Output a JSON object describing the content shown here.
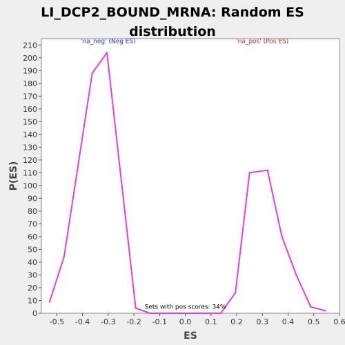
{
  "chart_data": {
    "type": "line",
    "title_lines": [
      "LI_DCP2_BOUND_MRNA: Random ES",
      "distribution"
    ],
    "xlabel": "ES",
    "ylabel": "P(ES)",
    "xlim": [
      -0.56,
      0.6
    ],
    "ylim": [
      0,
      215
    ],
    "x_ticks": [
      -0.5,
      -0.4,
      -0.3,
      -0.2,
      -0.1,
      0.0,
      0.1,
      0.2,
      0.3,
      0.4,
      0.5,
      0.6
    ],
    "x_tick_labels": [
      "-0.5",
      "-0.4",
      "-0.3",
      "-0.2",
      "-0.1",
      "0.0",
      "0.1",
      "0.2",
      "0.3",
      "0.4",
      "0.5",
      "0.6"
    ],
    "y_ticks": [
      0,
      10,
      20,
      30,
      40,
      50,
      60,
      70,
      80,
      90,
      100,
      110,
      120,
      130,
      140,
      150,
      160,
      170,
      180,
      190,
      200,
      210
    ],
    "y_tick_labels": [
      "0",
      "10",
      "20",
      "30",
      "40",
      "50",
      "60",
      "70",
      "80",
      "90",
      "100",
      "110",
      "120",
      "130",
      "140",
      "150",
      "160",
      "170",
      "180",
      "190",
      "200",
      "210"
    ],
    "series": [
      {
        "name": "Random ES",
        "color": "#e83ce8",
        "x": [
          -0.528,
          -0.472,
          -0.362,
          -0.305,
          -0.193,
          -0.137,
          0.138,
          0.195,
          0.25,
          0.32,
          0.376,
          0.432,
          0.488,
          0.545
        ],
        "y": [
          9,
          44,
          188,
          204,
          4,
          0,
          0,
          16,
          110,
          112,
          60,
          30,
          5,
          2
        ]
      }
    ],
    "annotations": [
      {
        "text": "'na_neg' (Neg ES)",
        "color": "#2a2af0",
        "x": -0.3,
        "y": 210
      },
      {
        "text": "'na_pos' (Pos ES)",
        "color": "#e02020",
        "x": 0.3,
        "y": 210
      },
      {
        "text": "Sets with pos scores: 34%",
        "color": "#000000",
        "x": 0.0,
        "y": 2
      }
    ]
  }
}
